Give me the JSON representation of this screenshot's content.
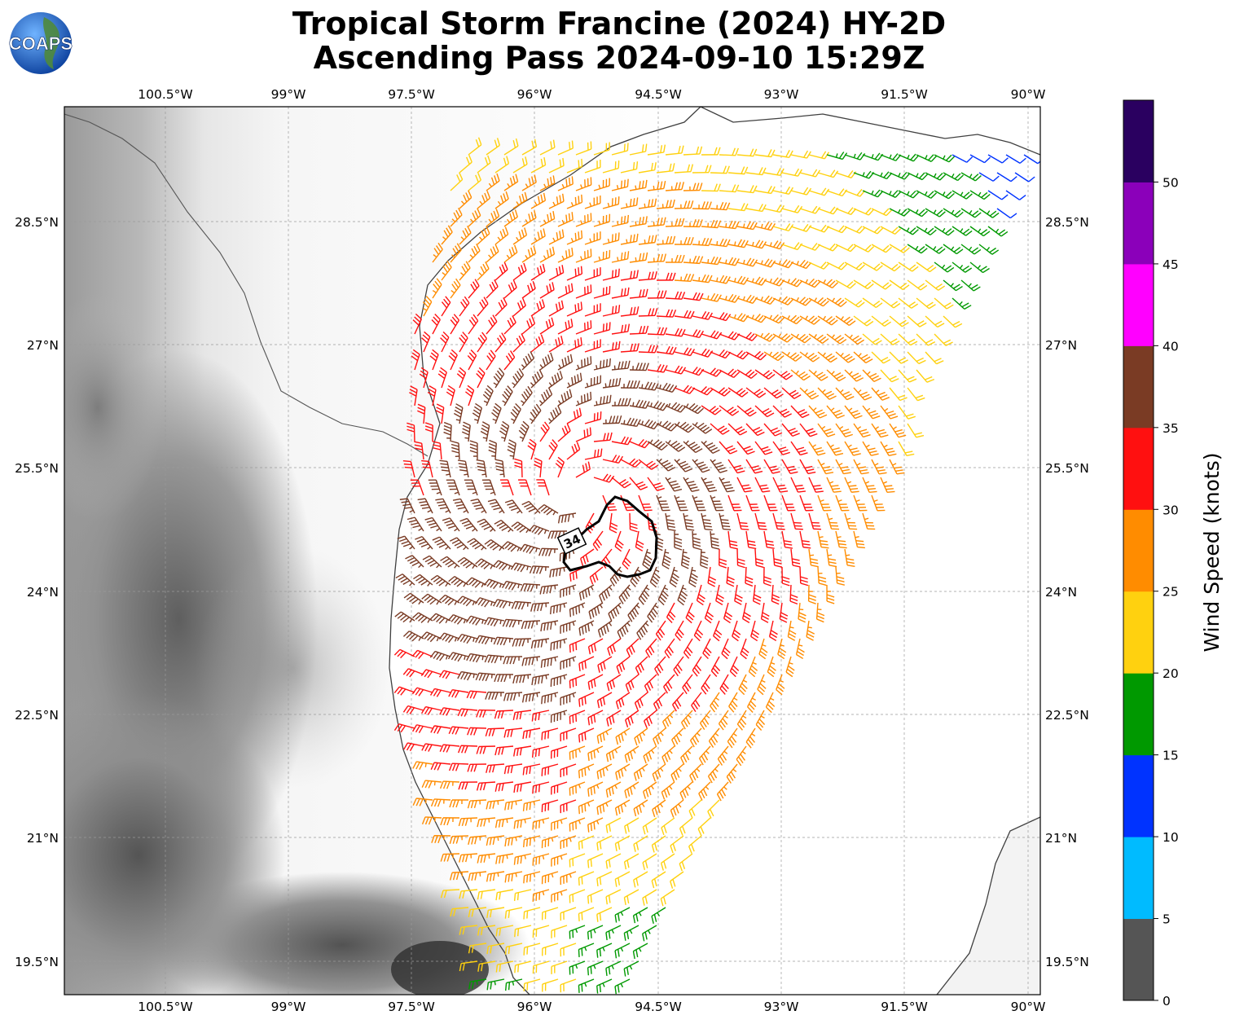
{
  "title": {
    "line1": "Tropical Storm Francine (2024) HY-2D",
    "line2": "Ascending Pass 2024-09-10 15:29Z"
  },
  "logo": {
    "text": "COAPS",
    "icon": "globe-icon"
  },
  "map": {
    "lon_range": [
      -101.333,
      -89.9
    ],
    "lat_range": [
      19.05,
      29.83
    ],
    "lon_ticks": [
      "100.5°W",
      "99°W",
      "97.5°W",
      "96°W",
      "94.5°W",
      "93°W",
      "91.5°W",
      "90°W"
    ],
    "lat_ticks": [
      "28.5°N",
      "27°N",
      "25.5°N",
      "24°N",
      "22.5°N",
      "21°N",
      "19.5°N"
    ],
    "contour_label": "34",
    "storm_center": {
      "lon": -95.3,
      "lat": 25.1
    }
  },
  "colorbar": {
    "label": "Wind Speed (knots)",
    "ticks": [
      "0",
      "5",
      "10",
      "15",
      "20",
      "25",
      "30",
      "35",
      "40",
      "45",
      "50"
    ],
    "colors": [
      "#555555",
      "#00bbff",
      "#0033ff",
      "#009900",
      "#ffd10f",
      "#ff8c00",
      "#ff1010",
      "#7a3b24",
      "#ff00ff",
      "#8b00ba",
      "#2a0060"
    ]
  }
}
